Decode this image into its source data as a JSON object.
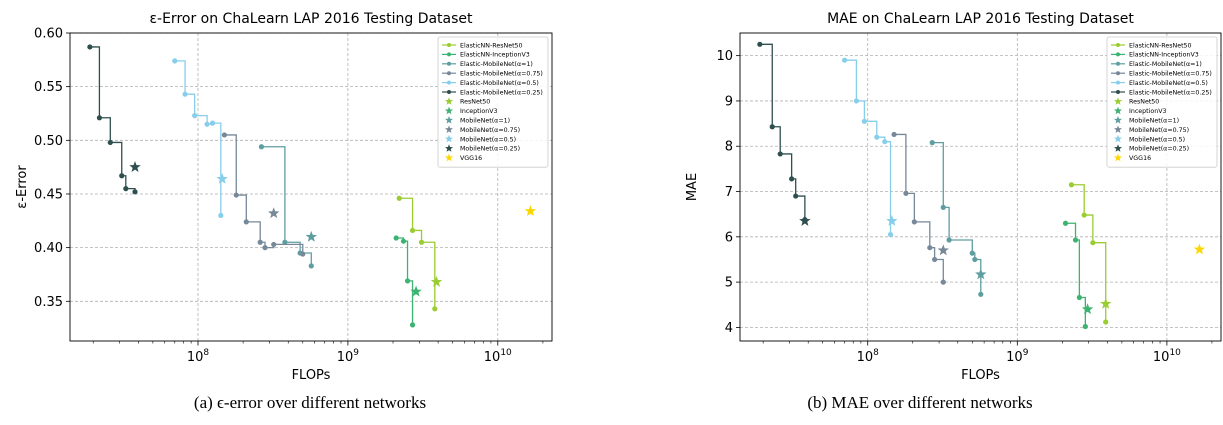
{
  "captions": {
    "a": "(a) ϵ-error over different networks",
    "b": "(b) MAE over different networks"
  },
  "legend_entries": [
    {
      "name": "ElasticNN-ResNet50",
      "color": "#9acd32",
      "marker": "dot"
    },
    {
      "name": "ElasticNN-InceptionV3",
      "color": "#3cb371",
      "marker": "dot"
    },
    {
      "name": "Elastic-MobileNet(α=1)",
      "color": "#5f9ea0",
      "marker": "dot"
    },
    {
      "name": "Elastic-MobileNet(α=0.75)",
      "color": "#778899",
      "marker": "dot"
    },
    {
      "name": "Elastic-MobileNet(α=0.5)",
      "color": "#87ceeb",
      "marker": "dot"
    },
    {
      "name": "Elastic-MobileNet(α=0.25)",
      "color": "#2f4f4f",
      "marker": "dot"
    },
    {
      "name": "ResNet50",
      "color": "#9acd32",
      "marker": "star"
    },
    {
      "name": "InceptionV3",
      "color": "#3cb371",
      "marker": "star"
    },
    {
      "name": "MobileNet(α=1)",
      "color": "#5f9ea0",
      "marker": "star"
    },
    {
      "name": "MobileNet(α=0.75)",
      "color": "#778899",
      "marker": "star"
    },
    {
      "name": "MobileNet(α=0.5)",
      "color": "#87ceeb",
      "marker": "star"
    },
    {
      "name": "MobileNet(α=0.25)",
      "color": "#2f4f4f",
      "marker": "star"
    },
    {
      "name": "VGG16",
      "color": "#ffd700",
      "marker": "star"
    }
  ],
  "chart_data": [
    {
      "type": "line",
      "title": "ε-Error on ChaLearn LAP 2016 Testing Dataset",
      "xlabel": "FLOPs",
      "ylabel": "ε-Error",
      "xscale": "log",
      "xlim": [
        14000000.0,
        23000000000.0
      ],
      "ylim": [
        0.313,
        0.6
      ],
      "yticks": [
        0.35,
        0.4,
        0.45,
        0.5,
        0.55,
        0.6
      ],
      "ytick_labels": [
        "0.35",
        "0.40",
        "0.45",
        "0.50",
        "0.55",
        "0.60"
      ],
      "xticks": [
        100000000.0,
        1000000000.0,
        10000000000.0
      ],
      "xtick_labels": [
        [
          "10",
          "8"
        ],
        [
          "10",
          "9"
        ],
        [
          "10",
          "10"
        ]
      ],
      "grid": true,
      "legend_position": "top-right",
      "style": "step",
      "series": [
        {
          "name": "ElasticNN-ResNet50",
          "x": [
            2200000000.0,
            2700000000.0,
            3100000000.0,
            3800000000.0
          ],
          "y": [
            0.446,
            0.416,
            0.405,
            0.343
          ]
        },
        {
          "name": "ElasticNN-InceptionV3",
          "x": [
            2100000000.0,
            2350000000.0,
            2500000000.0,
            2700000000.0
          ],
          "y": [
            0.409,
            0.406,
            0.369,
            0.328
          ]
        },
        {
          "name": "Elastic-MobileNet(α=1)",
          "x": [
            265000000.0,
            380000000.0,
            480000000.0,
            570000000.0
          ],
          "y": [
            0.494,
            0.405,
            0.395,
            0.383
          ]
        },
        {
          "name": "Elastic-MobileNet(α=0.75)",
          "x": [
            150000000.0,
            180000000.0,
            210000000.0,
            260000000.0,
            280000000.0,
            320000000.0,
            500000000.0
          ],
          "y": [
            0.505,
            0.449,
            0.424,
            0.405,
            0.4,
            0.403,
            0.394
          ]
        },
        {
          "name": "Elastic-MobileNet(α=0.5)",
          "x": [
            70000000.0,
            82000000.0,
            95000000.0,
            115000000.0,
            125000000.0,
            142000000.0
          ],
          "y": [
            0.574,
            0.543,
            0.523,
            0.515,
            0.516,
            0.43
          ]
        },
        {
          "name": "Elastic-MobileNet(α=0.25)",
          "x": [
            19000000.0,
            22000000.0,
            26000000.0,
            31000000.0,
            33000000.0,
            38000000.0
          ],
          "y": [
            0.587,
            0.521,
            0.498,
            0.467,
            0.455,
            0.452
          ]
        }
      ],
      "stars": [
        {
          "name": "ResNet50",
          "x": 3900000000.0,
          "y": 0.368
        },
        {
          "name": "InceptionV3",
          "x": 2850000000.0,
          "y": 0.359
        },
        {
          "name": "MobileNet(α=1)",
          "x": 570000000.0,
          "y": 0.41
        },
        {
          "name": "MobileNet(α=0.75)",
          "x": 320000000.0,
          "y": 0.432
        },
        {
          "name": "MobileNet(α=0.5)",
          "x": 145000000.0,
          "y": 0.464
        },
        {
          "name": "MobileNet(α=0.25)",
          "x": 38000000.0,
          "y": 0.475
        },
        {
          "name": "VGG16",
          "x": 16500000000.0,
          "y": 0.434
        }
      ]
    },
    {
      "type": "line",
      "title": "MAE on ChaLearn LAP 2016 Testing Dataset",
      "xlabel": "FLOPs",
      "ylabel": "MAE",
      "xscale": "log",
      "xlim": [
        14000000.0,
        23000000000.0
      ],
      "ylim": [
        3.7,
        10.5
      ],
      "yticks": [
        4,
        5,
        6,
        7,
        8,
        9,
        10
      ],
      "ytick_labels": [
        "4",
        "5",
        "6",
        "7",
        "8",
        "9",
        "10"
      ],
      "xticks": [
        100000000.0,
        1000000000.0,
        10000000000.0
      ],
      "xtick_labels": [
        [
          "10",
          "8"
        ],
        [
          "10",
          "9"
        ],
        [
          "10",
          "10"
        ]
      ],
      "grid": true,
      "legend_position": "top-right",
      "style": "step",
      "series": [
        {
          "name": "ElasticNN-ResNet50",
          "x": [
            2300000000.0,
            2800000000.0,
            3200000000.0,
            3900000000.0
          ],
          "y": [
            7.15,
            6.48,
            5.87,
            4.12
          ]
        },
        {
          "name": "ElasticNN-InceptionV3",
          "x": [
            2100000000.0,
            2450000000.0,
            2600000000.0,
            2850000000.0
          ],
          "y": [
            6.3,
            5.93,
            4.66,
            4.02
          ]
        },
        {
          "name": "Elastic-MobileNet(α=1)",
          "x": [
            270000000.0,
            320000000.0,
            350000000.0,
            500000000.0,
            520000000.0,
            570000000.0
          ],
          "y": [
            8.08,
            6.65,
            5.93,
            5.64,
            5.5,
            4.73
          ]
        },
        {
          "name": "Elastic-MobileNet(α=0.75)",
          "x": [
            150000000.0,
            180000000.0,
            205000000.0,
            260000000.0,
            280000000.0,
            320000000.0
          ],
          "y": [
            8.26,
            6.96,
            6.33,
            5.76,
            5.5,
            5.0
          ]
        },
        {
          "name": "Elastic-MobileNet(α=0.5)",
          "x": [
            70000000.0,
            84000000.0,
            95000000.0,
            115000000.0,
            130000000.0,
            142000000.0
          ],
          "y": [
            9.9,
            9.0,
            8.55,
            8.2,
            8.1,
            6.05
          ]
        },
        {
          "name": "Elastic-MobileNet(α=0.25)",
          "x": [
            19000000.0,
            23000000.0,
            26000000.0,
            31000000.0,
            33000000.0,
            38000000.0
          ],
          "y": [
            10.25,
            8.43,
            7.83,
            7.28,
            6.9,
            6.38
          ]
        }
      ],
      "stars": [
        {
          "name": "ResNet50",
          "x": 3900000000.0,
          "y": 4.52
        },
        {
          "name": "InceptionV3",
          "x": 2950000000.0,
          "y": 4.4
        },
        {
          "name": "MobileNet(α=1)",
          "x": 570000000.0,
          "y": 5.17
        },
        {
          "name": "MobileNet(α=0.75)",
          "x": 320000000.0,
          "y": 5.7
        },
        {
          "name": "MobileNet(α=0.5)",
          "x": 145000000.0,
          "y": 6.35
        },
        {
          "name": "MobileNet(α=0.25)",
          "x": 38000000.0,
          "y": 6.35
        },
        {
          "name": "VGG16",
          "x": 16500000000.0,
          "y": 5.72
        }
      ]
    }
  ]
}
